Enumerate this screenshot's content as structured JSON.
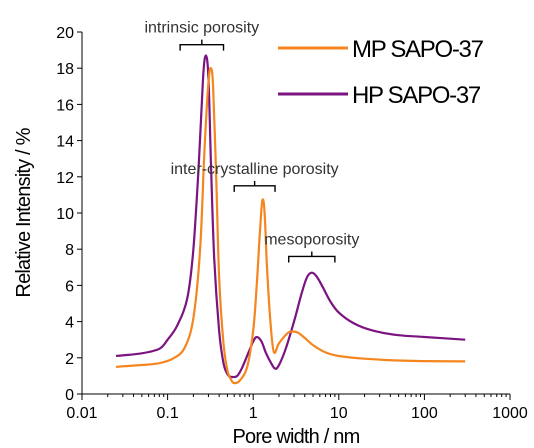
{
  "chart_data": {
    "type": "line",
    "xlabel": "Pore width / nm",
    "ylabel": "Relative Intensity / %",
    "xscale": "log",
    "xlim": [
      0.01,
      1000
    ],
    "ylim": [
      0,
      20
    ],
    "x_ticks": [
      "0.01",
      "0.1",
      "1",
      "10",
      "100",
      "1000"
    ],
    "y_ticks": [
      "0",
      "2",
      "4",
      "6",
      "8",
      "10",
      "12",
      "14",
      "16",
      "18",
      "20"
    ],
    "grid": false,
    "legend_position": "top-right",
    "series": [
      {
        "name": "MP SAPO-37",
        "color": "#f5861f",
        "points": [
          [
            0.025,
            1.5
          ],
          [
            0.05,
            1.6
          ],
          [
            0.08,
            1.7
          ],
          [
            0.12,
            2.0
          ],
          [
            0.16,
            2.6
          ],
          [
            0.2,
            4.2
          ],
          [
            0.24,
            8.0
          ],
          [
            0.27,
            13.5
          ],
          [
            0.3,
            17.2
          ],
          [
            0.32,
            18.0
          ],
          [
            0.34,
            17.0
          ],
          [
            0.37,
            12.0
          ],
          [
            0.4,
            6.5
          ],
          [
            0.45,
            2.8
          ],
          [
            0.5,
            1.3
          ],
          [
            0.55,
            0.8
          ],
          [
            0.6,
            0.6
          ],
          [
            0.7,
            0.75
          ],
          [
            0.85,
            1.5
          ],
          [
            1.0,
            3.5
          ],
          [
            1.1,
            6.0
          ],
          [
            1.2,
            9.0
          ],
          [
            1.28,
            10.7
          ],
          [
            1.36,
            10.0
          ],
          [
            1.45,
            7.0
          ],
          [
            1.6,
            3.8
          ],
          [
            1.75,
            2.3
          ],
          [
            2.0,
            2.8
          ],
          [
            2.5,
            3.35
          ],
          [
            2.8,
            3.45
          ],
          [
            3.3,
            3.4
          ],
          [
            4.0,
            3.1
          ],
          [
            5.0,
            2.7
          ],
          [
            7.0,
            2.3
          ],
          [
            10.0,
            2.1
          ],
          [
            20.0,
            1.95
          ],
          [
            50.0,
            1.85
          ],
          [
            100.0,
            1.82
          ],
          [
            300.0,
            1.8
          ]
        ]
      },
      {
        "name": "HP SAPO-37",
        "color": "#7b1480",
        "points": [
          [
            0.025,
            2.1
          ],
          [
            0.05,
            2.25
          ],
          [
            0.08,
            2.5
          ],
          [
            0.1,
            3.0
          ],
          [
            0.13,
            3.8
          ],
          [
            0.17,
            5.3
          ],
          [
            0.2,
            8.0
          ],
          [
            0.23,
            12.5
          ],
          [
            0.26,
            17.5
          ],
          [
            0.28,
            18.7
          ],
          [
            0.3,
            17.5
          ],
          [
            0.32,
            13.0
          ],
          [
            0.35,
            7.5
          ],
          [
            0.4,
            3.5
          ],
          [
            0.45,
            1.7
          ],
          [
            0.5,
            1.1
          ],
          [
            0.55,
            0.95
          ],
          [
            0.65,
            1.0
          ],
          [
            0.75,
            1.5
          ],
          [
            0.9,
            2.4
          ],
          [
            1.0,
            2.9
          ],
          [
            1.1,
            3.15
          ],
          [
            1.25,
            2.9
          ],
          [
            1.4,
            2.3
          ],
          [
            1.6,
            1.75
          ],
          [
            1.8,
            1.4
          ],
          [
            2.0,
            1.6
          ],
          [
            2.4,
            2.5
          ],
          [
            3.0,
            4.0
          ],
          [
            3.6,
            5.4
          ],
          [
            4.2,
            6.4
          ],
          [
            4.8,
            6.7
          ],
          [
            5.5,
            6.5
          ],
          [
            6.5,
            5.9
          ],
          [
            8.0,
            5.1
          ],
          [
            10.0,
            4.5
          ],
          [
            15.0,
            3.9
          ],
          [
            25.0,
            3.5
          ],
          [
            50.0,
            3.25
          ],
          [
            100.0,
            3.15
          ],
          [
            300.0,
            3.0
          ]
        ]
      }
    ],
    "annotations": [
      {
        "text": "intrinsic porosity",
        "x_range": [
          0.14,
          0.45
        ],
        "y": 19.3
      },
      {
        "text": "inter-crystalline porosity",
        "x_range": [
          0.6,
          1.8
        ],
        "y": 11.5
      },
      {
        "text": "mesoporosity",
        "x_range": [
          2.6,
          9.0
        ],
        "y": 7.6
      }
    ]
  }
}
